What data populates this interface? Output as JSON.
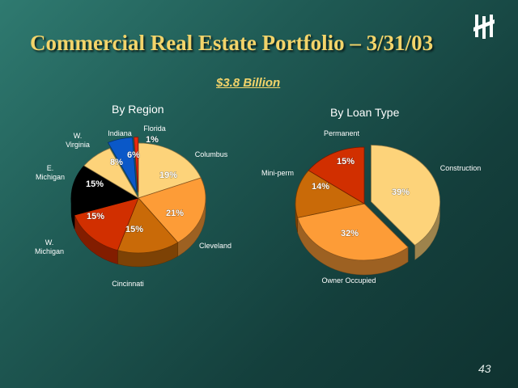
{
  "title": "Commercial Real Estate Portfolio – 3/31/03",
  "subtitle": "$3.8 Billion",
  "page_number": "43",
  "logo_icon": "huntington-logo-icon",
  "colors": {
    "background": "#1f5a54",
    "title": "#f3d46a",
    "label_text": "#ffffff"
  },
  "chart_data": [
    {
      "type": "pie",
      "title": "By Region",
      "slices": [
        {
          "label": "Columbus",
          "label_lines": [
            "Columbus"
          ],
          "value": 19,
          "pct_label": "19%",
          "color": "#fdd37a",
          "exploded": false
        },
        {
          "label": "Cleveland",
          "label_lines": [
            "Cleveland"
          ],
          "value": 21,
          "pct_label": "21%",
          "color": "#fd9c37",
          "exploded": false
        },
        {
          "label": "Cincinnati",
          "label_lines": [
            "Cincinnati"
          ],
          "value": 15,
          "pct_label": "15%",
          "color": "#c96a08",
          "exploded": false
        },
        {
          "label": "W. Michigan",
          "label_lines": [
            "W.",
            "Michigan"
          ],
          "value": 15,
          "pct_label": "15%",
          "color": "#d12f00",
          "exploded": false
        },
        {
          "label": "E. Michigan",
          "label_lines": [
            "E.",
            "Michigan"
          ],
          "value": 15,
          "pct_label": "15%",
          "color": "#000000",
          "exploded": false
        },
        {
          "label": "W. Virginia",
          "label_lines": [
            "W.",
            "Virginia"
          ],
          "value": 8,
          "pct_label": "8%",
          "color": "#fdd37a",
          "exploded": false
        },
        {
          "label": "Indiana",
          "label_lines": [
            "Indiana"
          ],
          "value": 6,
          "pct_label": "6%",
          "color": "#0a58c8",
          "exploded": true
        },
        {
          "label": "Florida",
          "label_lines": [
            "Florida"
          ],
          "value": 1,
          "pct_label": "1%",
          "color": "#e8290e",
          "exploded": true
        }
      ]
    },
    {
      "type": "pie",
      "title": "By Loan Type",
      "slices": [
        {
          "label": "Construction",
          "label_lines": [
            "Construction"
          ],
          "value": 39,
          "pct_label": "39%",
          "color": "#fdd37a",
          "exploded": true
        },
        {
          "label": "Owner Occupied",
          "label_lines": [
            "Owner Occupied"
          ],
          "value": 32,
          "pct_label": "32%",
          "color": "#fd9c37",
          "exploded": false
        },
        {
          "label": "Mini-perm",
          "label_lines": [
            "Mini-perm"
          ],
          "value": 14,
          "pct_label": "14%",
          "color": "#c96a08",
          "exploded": false
        },
        {
          "label": "Permanent",
          "label_lines": [
            "Permanent"
          ],
          "value": 15,
          "pct_label": "15%",
          "color": "#d12f00",
          "exploded": false
        }
      ]
    }
  ]
}
